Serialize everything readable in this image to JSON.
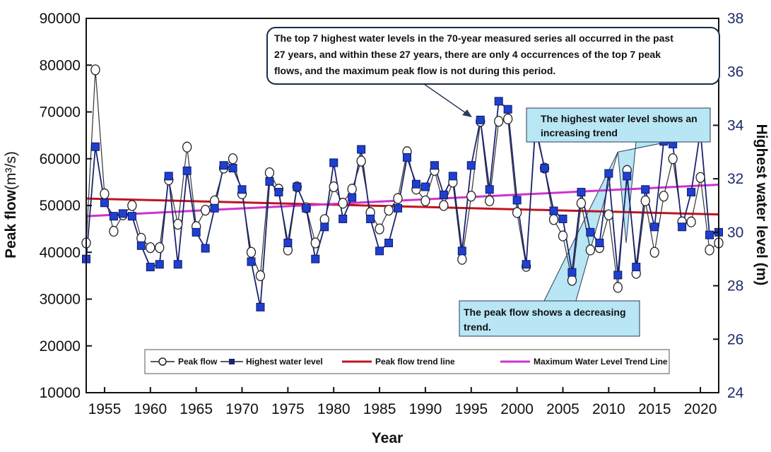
{
  "chart_data": {
    "type": "line",
    "xlabel": "Year",
    "ylabel_left": "Peak flow",
    "ylabel_left_unit": "(m³/s)",
    "ylabel_right": "Highest water level (m)",
    "xlim": [
      1953,
      2022
    ],
    "ylim_left": [
      10000,
      90000
    ],
    "ylim_right": [
      24,
      38
    ],
    "x_ticks": [
      1955,
      1960,
      1965,
      1970,
      1975,
      1980,
      1985,
      1990,
      1995,
      2000,
      2005,
      2010,
      2015,
      2020
    ],
    "y_ticks_left": [
      10000,
      20000,
      30000,
      40000,
      50000,
      60000,
      70000,
      80000,
      90000
    ],
    "y_ticks_right": [
      24,
      26,
      28,
      30,
      32,
      34,
      36,
      38
    ],
    "grid": false,
    "legend_position": "bottom",
    "years": [
      1953,
      1954,
      1955,
      1956,
      1957,
      1958,
      1959,
      1960,
      1961,
      1962,
      1963,
      1964,
      1965,
      1966,
      1967,
      1968,
      1969,
      1970,
      1971,
      1972,
      1973,
      1974,
      1975,
      1976,
      1977,
      1978,
      1979,
      1980,
      1981,
      1982,
      1983,
      1984,
      1985,
      1986,
      1987,
      1988,
      1989,
      1990,
      1991,
      1992,
      1993,
      1994,
      1995,
      1996,
      1997,
      1998,
      1999,
      2000,
      2001,
      2002,
      2003,
      2004,
      2005,
      2006,
      2007,
      2008,
      2009,
      2010,
      2011,
      2012,
      2013,
      2014,
      2015,
      2016,
      2017,
      2018,
      2019,
      2020,
      2021,
      2022
    ],
    "series": [
      {
        "name": "Peak flow",
        "axis": "left",
        "color": "#222222",
        "marker": "open-circle",
        "values": [
          42000,
          79000,
          52500,
          44500,
          48000,
          50000,
          43000,
          41000,
          41000,
          55500,
          46000,
          62500,
          45500,
          49000,
          51000,
          58000,
          60000,
          52500,
          40000,
          35000,
          57000,
          53500,
          40500,
          54000,
          49500,
          42000,
          47000,
          54000,
          50500,
          53500,
          59500,
          48500,
          45000,
          49000,
          51500,
          61500,
          53500,
          51000,
          57500,
          50000,
          55000,
          38500,
          52000,
          68000,
          51000,
          68000,
          68500,
          48500,
          37000,
          67500,
          58000,
          47000,
          43500,
          34000,
          50500,
          40500,
          41000,
          48000,
          32500,
          57500,
          35500,
          51000,
          40000,
          52000,
          60000,
          46500,
          46500,
          56000,
          40500,
          42000
        ]
      },
      {
        "name": "Highest water level",
        "axis": "right",
        "color": "#1b2470",
        "marker": "filled-square",
        "values": [
          29.0,
          33.2,
          31.1,
          30.6,
          30.7,
          30.6,
          29.5,
          28.7,
          28.8,
          32.1,
          28.8,
          32.3,
          30.0,
          29.4,
          30.9,
          32.5,
          32.4,
          31.6,
          28.9,
          27.2,
          31.9,
          31.5,
          29.6,
          31.7,
          30.9,
          29.0,
          30.2,
          32.6,
          30.5,
          31.3,
          33.1,
          30.5,
          29.3,
          29.6,
          30.9,
          32.8,
          31.8,
          31.7,
          32.5,
          31.4,
          32.1,
          29.3,
          32.5,
          34.2,
          31.6,
          34.9,
          34.6,
          31.2,
          28.8,
          33.9,
          32.4,
          30.8,
          30.5,
          28.5,
          31.5,
          30.0,
          29.6,
          32.2,
          28.4,
          32.1,
          28.7,
          31.6,
          30.2,
          33.4,
          33.3,
          30.2,
          31.5,
          33.8,
          29.9,
          30.0
        ]
      },
      {
        "name": "Peak flow trend line",
        "axis": "left",
        "color": "#c0141e",
        "x": [
          1953,
          2022
        ],
        "values": [
          51500,
          48100
        ]
      },
      {
        "name": "Maximum Water Level Trend Line",
        "axis": "right",
        "color": "#cc33cc",
        "x": [
          1953,
          2022
        ],
        "values": [
          30.6,
          31.78
        ]
      }
    ],
    "annotations": {
      "top7": [
        "The top 7 highest water levels in the 70-year measured series all occurred in the past",
        "27 years, and within these 27 years, there are only 4 occurrences of the top 7 peak",
        "flows, and the maximum peak flow is not during this period."
      ],
      "increasing": [
        "The highest water level shows an",
        "increasing trend"
      ],
      "decreasing": [
        "The peak flow shows a decreasing",
        "trend."
      ]
    },
    "colors": {
      "right_axis": "#1f2a6b",
      "callout_fill": "#b8e6f4",
      "square_marker": "#1f3fcf"
    }
  }
}
